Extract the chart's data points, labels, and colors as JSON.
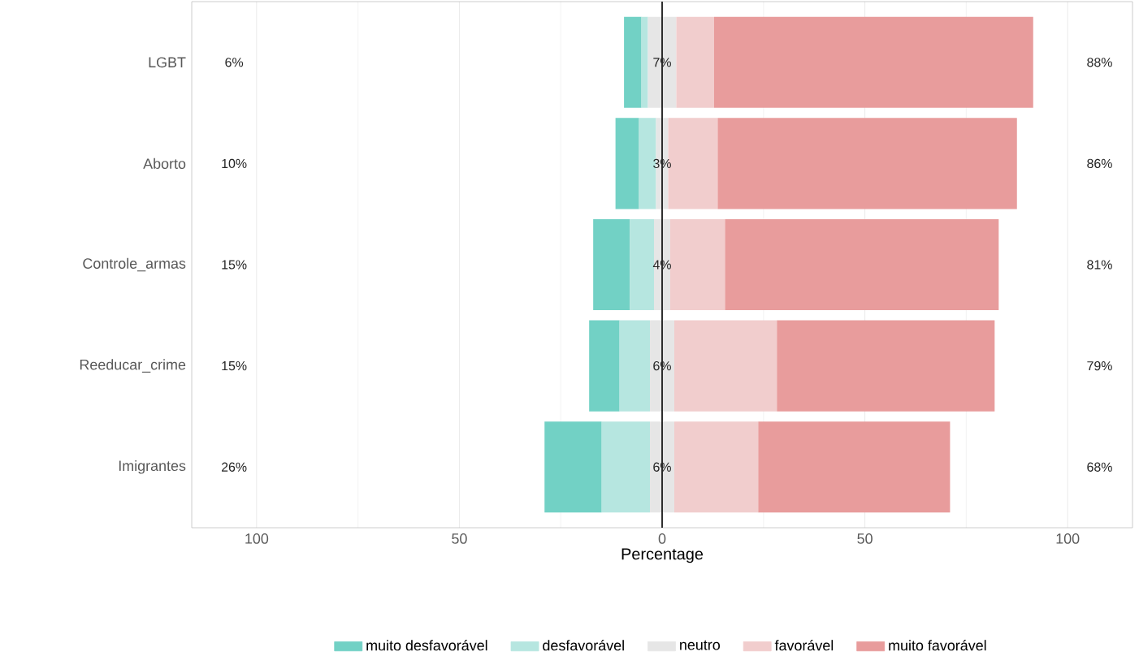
{
  "chart_data": {
    "type": "bar",
    "orientation": "horizontal",
    "stacked": true,
    "xlabel": "Percentage",
    "categories": [
      "LGBT",
      "Aborto",
      "Controle_armas",
      "Reeducar_crime",
      "Imigrantes"
    ],
    "series": [
      {
        "name": "muito desfavorável",
        "color": "#72d1c5",
        "values": [
          4.3,
          5.8,
          9,
          7.5,
          14.1
        ],
        "base": [
          -9.4,
          -11.5,
          -17,
          -18,
          -29
        ]
      },
      {
        "name": "desfavorável",
        "color": "#b6e6e0",
        "values": [
          1.6,
          4.2,
          6,
          7.5,
          11.9
        ],
        "base": [
          -5.1,
          -5.7,
          -8,
          -10.5,
          -14.9
        ]
      },
      {
        "name": "neutro",
        "color": "#e6e6e6",
        "values": [
          7,
          3,
          4,
          6,
          6
        ],
        "base": [
          -3.5,
          -1.5,
          -2,
          -3,
          -3
        ]
      },
      {
        "name": "favorável",
        "color": "#f1cdcd",
        "values": [
          9.3,
          12.2,
          13.5,
          25.3,
          20.7
        ],
        "base": [
          3.5,
          1.5,
          2,
          3,
          3
        ]
      },
      {
        "name": "muito favorável",
        "color": "#e89c9c",
        "values": [
          78.7,
          73.8,
          67.5,
          53.7,
          47.3
        ],
        "base": [
          12.8,
          13.7,
          15.5,
          28.3,
          23.7
        ]
      }
    ],
    "xlim": [
      -116,
      116
    ],
    "xticks": [
      {
        "value": -100,
        "label": "100"
      },
      {
        "value": -50,
        "label": "50"
      },
      0,
      50,
      100
    ],
    "grid": "x",
    "legend": "bottom",
    "ref_lines": [
      {
        "axis": "x",
        "value": 0,
        "color": "#000000"
      }
    ],
    "annotations": [
      "6%",
      "7%",
      "88%",
      "10%",
      "3%",
      "86%",
      "15%",
      "4%",
      "81%",
      "15%",
      "6%",
      "79%",
      "26%",
      "6%",
      "68%"
    ]
  }
}
